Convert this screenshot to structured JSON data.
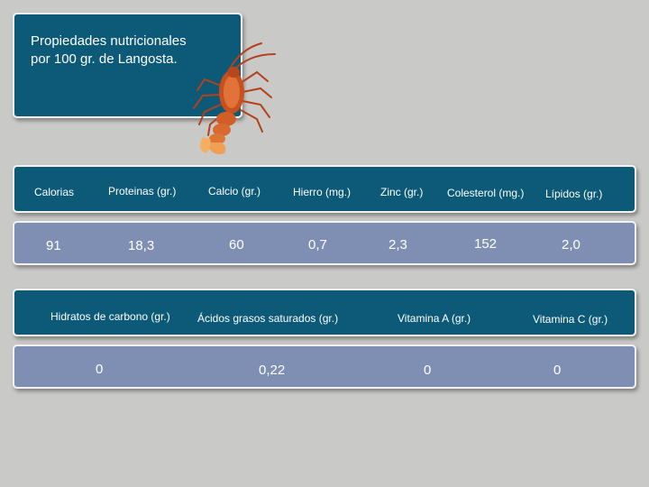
{
  "title": {
    "line1": "Propiedades nutricionales",
    "line2": "por 100 gr. de Langosta."
  },
  "table1": {
    "headers": [
      "Calorias",
      "Proteinas (gr.)",
      "Calcio (gr.)",
      "Hierro (mg.)",
      "Zinc (gr.)",
      "Colesterol (mg.)",
      "Lípidos (gr.)"
    ],
    "values": [
      "91",
      "18,3",
      "60",
      "0,7",
      "2,3",
      "152",
      "2,0"
    ]
  },
  "table2": {
    "headers": [
      "Hidratos de carbono (gr.)",
      "Ácidos grasos saturados (gr.)",
      "Vitamina A (gr.)",
      "Vitamina C (gr.)"
    ],
    "values": [
      "0",
      "0,22",
      "0",
      "0"
    ]
  },
  "colors": {
    "background": "#c9c9c7",
    "header_panel": "#0c5a78",
    "value_panel": "#7f8fb3"
  },
  "icons": {
    "illustration": "lobster-illustration"
  }
}
